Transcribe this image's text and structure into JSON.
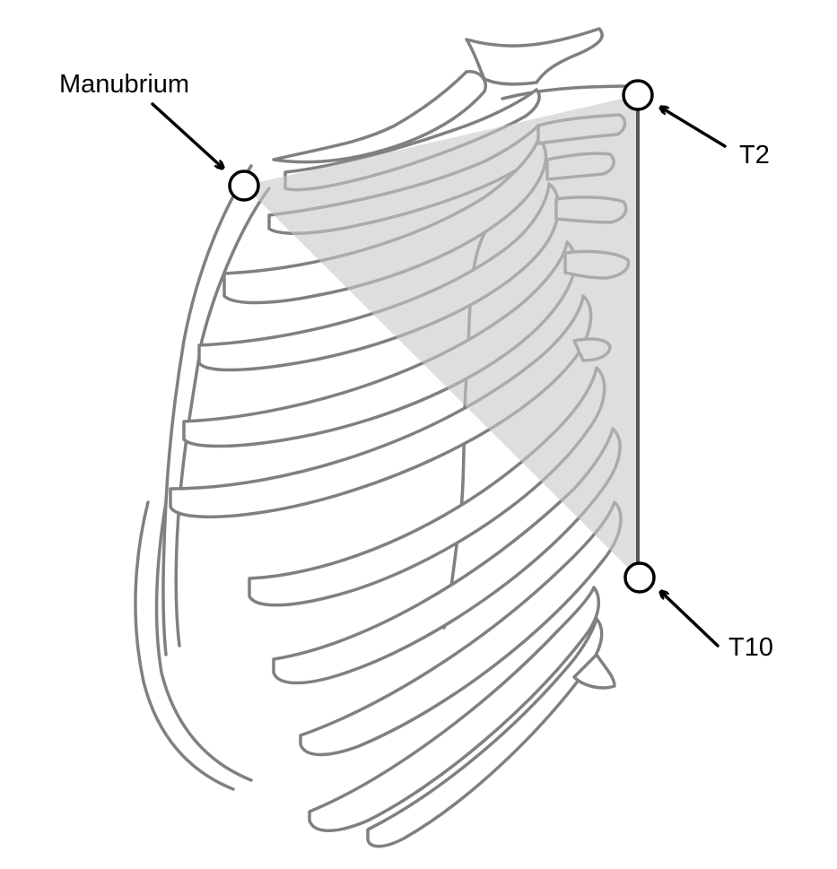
{
  "labels": {
    "manubrium": "Manubrium",
    "t2": "T2",
    "t10": "T10"
  },
  "colors": {
    "bone_outline": "#808080",
    "triangle_fill": "#c8c8c8",
    "marker_stroke": "#000000"
  }
}
